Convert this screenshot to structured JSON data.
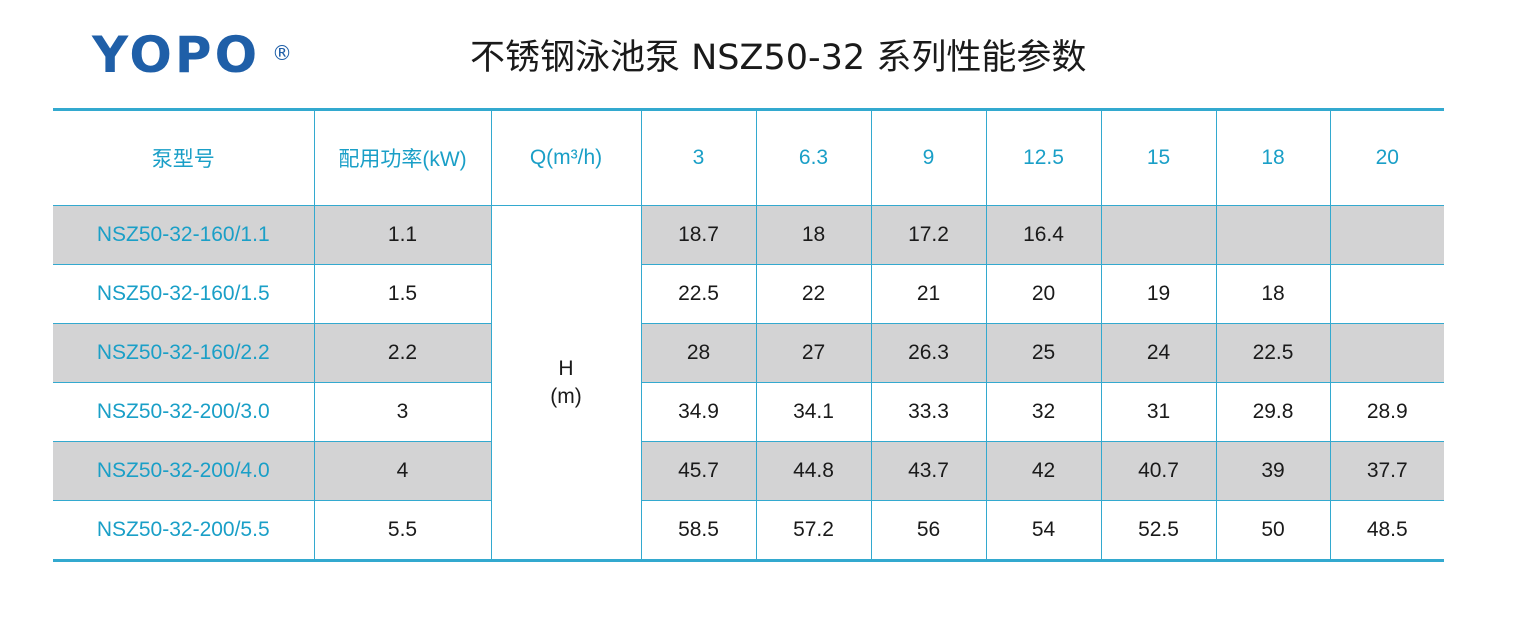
{
  "brand": {
    "name": "YOPO",
    "reg_mark": "®"
  },
  "title": "不锈钢泳池泵 NSZ50-32 系列性能参数",
  "table": {
    "headers": {
      "model": "泵型号",
      "power": "配用功率(kW)",
      "flow": "Q(m³/h)",
      "flow_points": [
        "3",
        "6.3",
        "9",
        "12.5",
        "15",
        "18",
        "20"
      ]
    },
    "head_label": {
      "symbol": "H",
      "unit": "(m)"
    },
    "rows": [
      {
        "model": "NSZ50-32-160/1.1",
        "power": "1.1",
        "values": [
          "18.7",
          "18",
          "17.2",
          "16.4",
          "",
          "",
          ""
        ]
      },
      {
        "model": "NSZ50-32-160/1.5",
        "power": "1.5",
        "values": [
          "22.5",
          "22",
          "21",
          "20",
          "19",
          "18",
          ""
        ]
      },
      {
        "model": "NSZ50-32-160/2.2",
        "power": "2.2",
        "values": [
          "28",
          "27",
          "26.3",
          "25",
          "24",
          "22.5",
          ""
        ]
      },
      {
        "model": "NSZ50-32-200/3.0",
        "power": "3",
        "values": [
          "34.9",
          "34.1",
          "33.3",
          "32",
          "31",
          "29.8",
          "28.9"
        ]
      },
      {
        "model": "NSZ50-32-200/4.0",
        "power": "4",
        "values": [
          "45.7",
          "44.8",
          "43.7",
          "42",
          "40.7",
          "39",
          "37.7"
        ]
      },
      {
        "model": "NSZ50-32-200/5.5",
        "power": "5.5",
        "values": [
          "58.5",
          "57.2",
          "56",
          "54",
          "52.5",
          "50",
          "48.5"
        ]
      }
    ]
  },
  "colors": {
    "brand": "#1f5fa8",
    "accent": "#33a9cf",
    "header_text": "#1a9fc7",
    "row_shade": "#d3d3d4"
  }
}
